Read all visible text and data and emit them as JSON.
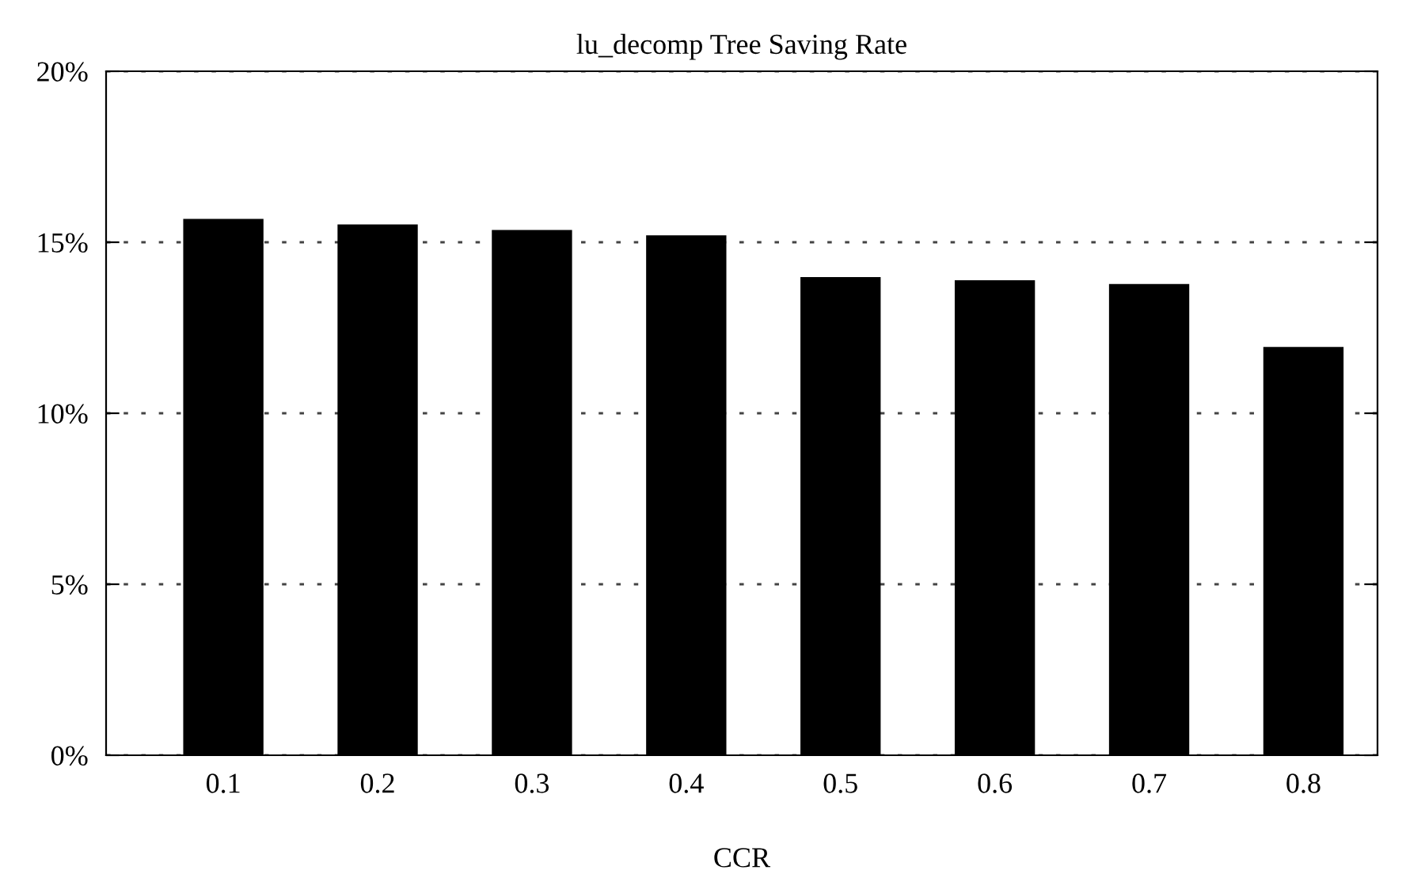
{
  "chart_data": {
    "type": "bar",
    "title": "lu_decomp Tree Saving Rate",
    "xlabel": "CCR",
    "categories": [
      "0.1",
      "0.2",
      "0.3",
      "0.4",
      "0.5",
      "0.6",
      "0.7",
      "0.8"
    ],
    "values": [
      15.68,
      15.52,
      15.36,
      15.2,
      13.98,
      13.89,
      13.78,
      11.94
    ],
    "color": "#000000",
    "ylim": [
      0,
      20
    ],
    "yticks": [
      {
        "value": 0,
        "label": "0%"
      },
      {
        "value": 5,
        "label": "5%"
      },
      {
        "value": 10,
        "label": "10%"
      },
      {
        "value": 15,
        "label": "15%"
      },
      {
        "value": 20,
        "label": "20%"
      }
    ],
    "grid": "y"
  }
}
